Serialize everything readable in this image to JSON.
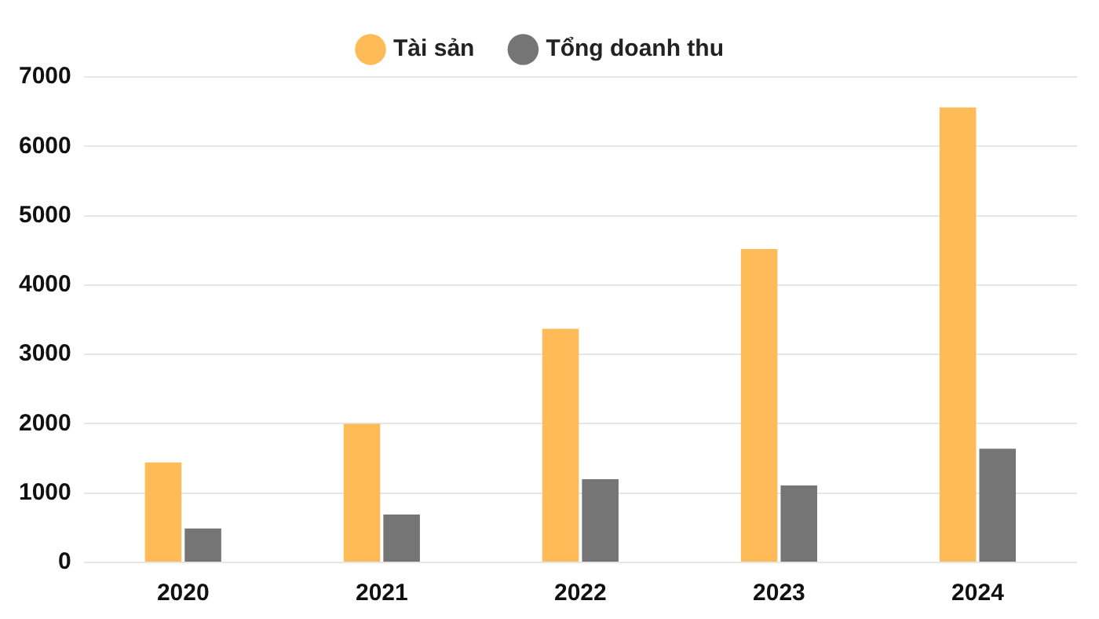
{
  "chart_data": {
    "type": "bar",
    "categories": [
      "2020",
      "2021",
      "2022",
      "2023",
      "2024"
    ],
    "series": [
      {
        "name": "Tài sản",
        "color": "#ffbb58",
        "values": [
          1440,
          2000,
          3370,
          4520,
          6560
        ]
      },
      {
        "name": "Tổng doanh thu",
        "color": "#757575",
        "values": [
          490,
          690,
          1200,
          1110,
          1640
        ]
      }
    ],
    "ylim": [
      0,
      7000
    ],
    "yticks": [
      0,
      1000,
      2000,
      3000,
      4000,
      5000,
      6000,
      7000
    ],
    "grid": "y",
    "legend": "top"
  }
}
